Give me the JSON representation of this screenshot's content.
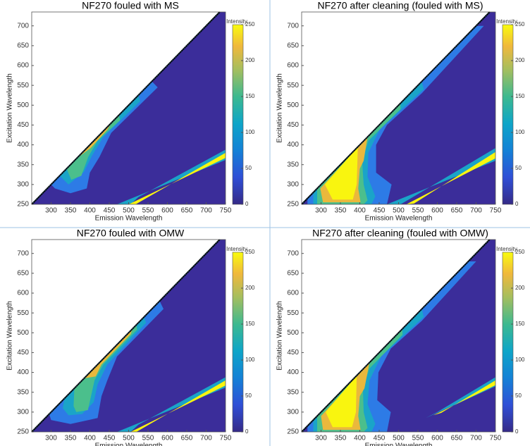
{
  "chart_data": [
    {
      "type": "contour",
      "title": "NF270 fouled with MS",
      "xlabel": "Emission Wavelength",
      "ylabel": "Excitation Wavelength",
      "xlim": [
        250,
        750
      ],
      "xticks": [
        300,
        350,
        400,
        450,
        500,
        550,
        600,
        650,
        700,
        750
      ],
      "ylim": [
        250,
        735
      ],
      "yticks": [
        250,
        300,
        350,
        400,
        450,
        500,
        550,
        600,
        650,
        700
      ],
      "colorbar_label": "Intensity",
      "clim": [
        0,
        250
      ],
      "cticks": [
        0,
        50,
        100,
        150,
        200,
        250
      ],
      "contours": [
        {
          "level": 0,
          "color": "#3b2d9a",
          "points": [
            [
              250,
              250
            ],
            [
              735,
              735
            ],
            [
              750,
              735
            ],
            [
              750,
              250
            ]
          ]
        },
        {
          "level": 50,
          "color": "#2d7be6",
          "points": [
            [
              300,
              300
            ],
            [
              560,
              560
            ],
            [
              575,
              545
            ],
            [
              455,
              430
            ],
            [
              425,
              370
            ],
            [
              400,
              330
            ],
            [
              392,
              290
            ],
            [
              350,
              278
            ],
            [
              310,
              290
            ]
          ]
        },
        {
          "level": 100,
          "color": "#1aa4c8",
          "points": [
            [
              322,
              322
            ],
            [
              525,
              525
            ],
            [
              530,
              510
            ],
            [
              435,
              420
            ],
            [
              405,
              372
            ],
            [
              385,
              332
            ],
            [
              345,
              300
            ]
          ]
        },
        {
          "level": 150,
          "color": "#4bbf8c",
          "points": [
            [
              340,
              340
            ],
            [
              475,
              475
            ],
            [
              478,
              462
            ],
            [
              420,
              410
            ],
            [
              396,
              370
            ],
            [
              378,
              322
            ],
            [
              352,
              312
            ]
          ]
        },
        {
          "level": 200,
          "color": "#eab83c",
          "points": [
            [
              365,
              365
            ],
            [
              455,
              455
            ],
            [
              445,
              438
            ],
            [
              402,
              392
            ]
          ]
        },
        {
          "level": 100,
          "color": "#1aa4c8",
          "points": [
            [
              470,
              250
            ],
            [
              750,
              362
            ],
            [
              750,
              388
            ],
            [
              525,
              268
            ],
            [
              505,
              250
            ]
          ]
        },
        {
          "level": 250,
          "color": "#f9f50f",
          "points": [
            [
              500,
              250
            ],
            [
              750,
              367
            ],
            [
              750,
              380
            ],
            [
              518,
              250
            ]
          ]
        }
      ]
    },
    {
      "type": "contour",
      "title": "NF270 after cleaning (fouled with MS)",
      "xlabel": "Emission Wavelength",
      "ylabel": "Excitation Wavelength",
      "xlim": [
        250,
        750
      ],
      "xticks": [
        300,
        350,
        400,
        450,
        500,
        550,
        600,
        650,
        700,
        750
      ],
      "ylim": [
        250,
        735
      ],
      "yticks": [
        250,
        300,
        350,
        400,
        450,
        500,
        550,
        600,
        650,
        700
      ],
      "colorbar_label": "Intensity",
      "clim": [
        0,
        250
      ],
      "cticks": [
        0,
        50,
        100,
        150,
        200,
        250
      ],
      "contours": [
        {
          "level": 0,
          "color": "#3b2d9a",
          "points": [
            [
              250,
              250
            ],
            [
              735,
              735
            ],
            [
              750,
              735
            ],
            [
              750,
              250
            ]
          ]
        },
        {
          "level": 50,
          "color": "#2d7be6",
          "points": [
            [
              265,
              265
            ],
            [
              700,
              700
            ],
            [
              720,
              700
            ],
            [
              560,
              530
            ],
            [
              470,
              450
            ],
            [
              442,
              400
            ],
            [
              442,
              330
            ],
            [
              482,
              300
            ],
            [
              470,
              250
            ],
            [
              265,
              250
            ]
          ]
        },
        {
          "level": 100,
          "color": "#1aa4c8",
          "points": [
            [
              280,
              280
            ],
            [
              560,
              560
            ],
            [
              565,
              540
            ],
            [
              452,
              440
            ],
            [
              422,
              380
            ],
            [
              420,
              320
            ],
            [
              440,
              270
            ],
            [
              430,
              250
            ],
            [
              280,
              250
            ]
          ]
        },
        {
          "level": 150,
          "color": "#4bbf8c",
          "points": [
            [
              290,
              290
            ],
            [
              505,
              505
            ],
            [
              505,
              490
            ],
            [
              422,
              410
            ],
            [
              406,
              360
            ],
            [
              410,
              300
            ],
            [
              420,
              260
            ],
            [
              410,
              250
            ],
            [
              290,
              250
            ]
          ]
        },
        {
          "level": 200,
          "color": "#eab83c",
          "points": [
            [
              298,
              290
            ],
            [
              420,
              420
            ],
            [
              410,
              360
            ],
            [
              400,
              340
            ],
            [
              396,
              290
            ],
            [
              402,
              255
            ],
            [
              305,
              255
            ]
          ]
        },
        {
          "level": 250,
          "color": "#f9f50f",
          "points": [
            [
              310,
              300
            ],
            [
              395,
              395
            ],
            [
              392,
              300
            ],
            [
              382,
              262
            ],
            [
              330,
              262
            ]
          ]
        },
        {
          "level": 100,
          "color": "#1aa4c8",
          "points": [
            [
              470,
              250
            ],
            [
              750,
              360
            ],
            [
              750,
              392
            ],
            [
              540,
              270
            ],
            [
              505,
              250
            ]
          ]
        },
        {
          "level": 250,
          "color": "#f9f50f",
          "points": [
            [
              520,
              250
            ],
            [
              750,
              366
            ],
            [
              750,
              382
            ],
            [
              540,
              252
            ]
          ]
        }
      ]
    },
    {
      "type": "contour",
      "title": "NF270 fouled with OMW",
      "xlabel": "Emission Wavelength",
      "ylabel": "Excitation Wavelength",
      "xlim": [
        250,
        750
      ],
      "xticks": [
        300,
        350,
        400,
        450,
        500,
        550,
        600,
        650,
        700,
        750
      ],
      "ylim": [
        250,
        735
      ],
      "yticks": [
        250,
        300,
        350,
        400,
        450,
        500,
        550,
        600,
        650,
        700
      ],
      "colorbar_label": "Intensity",
      "clim": [
        0,
        250
      ],
      "cticks": [
        0,
        50,
        100,
        150,
        200,
        250
      ],
      "contours": [
        {
          "level": 0,
          "color": "#3b2d9a",
          "points": [
            [
              250,
              250
            ],
            [
              735,
              735
            ],
            [
              750,
              735
            ],
            [
              750,
              250
            ]
          ]
        },
        {
          "level": 50,
          "color": "#2d7be6",
          "points": [
            [
              295,
              295
            ],
            [
              580,
              580
            ],
            [
              590,
              560
            ],
            [
              470,
              440
            ],
            [
              445,
              380
            ],
            [
              430,
              340
            ],
            [
              420,
              285
            ],
            [
              350,
              270
            ],
            [
              300,
              280
            ]
          ]
        },
        {
          "level": 100,
          "color": "#1aa4c8",
          "points": [
            [
              335,
              335
            ],
            [
              540,
              540
            ],
            [
              545,
              525
            ],
            [
              445,
              420
            ],
            [
              420,
              370
            ],
            [
              410,
              325
            ],
            [
              380,
              295
            ],
            [
              345,
              292
            ],
            [
              330,
              310
            ]
          ]
        },
        {
          "level": 150,
          "color": "#4bbf8c",
          "points": [
            [
              360,
              360
            ],
            [
              520,
              520
            ],
            [
              522,
              508
            ],
            [
              435,
              420
            ],
            [
              412,
              380
            ],
            [
              395,
              305
            ],
            [
              365,
              300
            ],
            [
              358,
              315
            ]
          ]
        },
        {
          "level": 200,
          "color": "#eab83c",
          "points": [
            [
              385,
              385
            ],
            [
              510,
              510
            ],
            [
              505,
              496
            ],
            [
              430,
              420
            ],
            [
              415,
              390
            ]
          ]
        },
        {
          "level": 100,
          "color": "#1aa4c8",
          "points": [
            [
              470,
              250
            ],
            [
              750,
              362
            ],
            [
              750,
              388
            ],
            [
              525,
              268
            ],
            [
              505,
              250
            ]
          ]
        },
        {
          "level": 250,
          "color": "#f9f50f",
          "points": [
            [
              505,
              250
            ],
            [
              750,
              367
            ],
            [
              750,
              380
            ],
            [
              520,
              250
            ]
          ]
        }
      ]
    },
    {
      "type": "contour",
      "title": "NF270 after cleaning (fouled with OMW)",
      "xlabel": "Emission Wavelength",
      "ylabel": "Excitation Wavelength",
      "xlim": [
        250,
        750
      ],
      "xticks": [
        300,
        350,
        400,
        450,
        500,
        550,
        600,
        650,
        700,
        750
      ],
      "ylim": [
        250,
        735
      ],
      "yticks": [
        250,
        300,
        350,
        400,
        450,
        500,
        550,
        600,
        650,
        700
      ],
      "colorbar_label": "Intensity",
      "clim": [
        0,
        250
      ],
      "cticks": [
        0,
        50,
        100,
        150,
        200,
        250
      ],
      "contours": [
        {
          "level": 0,
          "color": "#3b2d9a",
          "points": [
            [
              250,
              250
            ],
            [
              735,
              735
            ],
            [
              750,
              735
            ],
            [
              750,
              250
            ]
          ]
        },
        {
          "level": 50,
          "color": "#2d7be6",
          "points": [
            [
              265,
              265
            ],
            [
              680,
              680
            ],
            [
              700,
              680
            ],
            [
              560,
              530
            ],
            [
              480,
              460
            ],
            [
              448,
              400
            ],
            [
              445,
              330
            ],
            [
              480,
              300
            ],
            [
              470,
              250
            ],
            [
              265,
              250
            ]
          ]
        },
        {
          "level": 100,
          "color": "#1aa4c8",
          "points": [
            [
              280,
              280
            ],
            [
              560,
              560
            ],
            [
              565,
              540
            ],
            [
              455,
              440
            ],
            [
              425,
              380
            ],
            [
              420,
              320
            ],
            [
              440,
              270
            ],
            [
              430,
              250
            ],
            [
              280,
              250
            ]
          ]
        },
        {
          "level": 150,
          "color": "#4bbf8c",
          "points": [
            [
              290,
              290
            ],
            [
              510,
              510
            ],
            [
              510,
              495
            ],
            [
              425,
              410
            ],
            [
              408,
              360
            ],
            [
              410,
              300
            ],
            [
              420,
              260
            ],
            [
              410,
              250
            ],
            [
              290,
              250
            ]
          ]
        },
        {
          "level": 200,
          "color": "#eab83c",
          "points": [
            [
              300,
              290
            ],
            [
              425,
              425
            ],
            [
              412,
              360
            ],
            [
              400,
              340
            ],
            [
              396,
              290
            ],
            [
              402,
              255
            ],
            [
              305,
              255
            ]
          ]
        },
        {
          "level": 250,
          "color": "#f9f50f",
          "points": [
            [
              312,
              300
            ],
            [
              392,
              392
            ],
            [
              390,
              300
            ],
            [
              380,
              262
            ],
            [
              330,
              262
            ]
          ]
        },
        {
          "level": 100,
          "color": "#1aa4c8",
          "points": [
            [
              570,
              285
            ],
            [
              750,
              365
            ],
            [
              750,
              388
            ],
            [
              600,
              300
            ]
          ]
        },
        {
          "level": 250,
          "color": "#f9f50f",
          "points": [
            [
              590,
              292
            ],
            [
              750,
              368
            ],
            [
              750,
              380
            ],
            [
              610,
              298
            ]
          ]
        }
      ]
    }
  ]
}
